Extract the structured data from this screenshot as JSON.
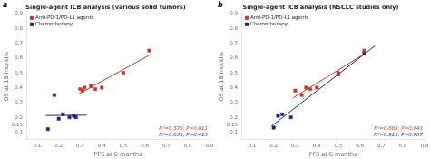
{
  "chart_data": [
    {
      "type": "scatter",
      "title": "Single-agent ICB analysis (various solid tumors)",
      "panel_label": "a",
      "xlabel": "PFS at 6 months",
      "ylabel": "OS at 18 months",
      "xlim": [
        0.05,
        0.9
      ],
      "ylim": [
        0.05,
        0.9
      ],
      "xticks": [
        0.1,
        0.2,
        0.3,
        0.4,
        0.5,
        0.6,
        0.7,
        0.8,
        0.9
      ],
      "yticks": [
        0.1,
        0.15,
        0.2,
        0.3,
        0.4,
        0.5,
        0.6,
        0.7,
        0.8,
        0.9
      ],
      "grid": false,
      "legend": "upper left",
      "series": [
        {
          "name": "Anti-PD-1/PD-L1 agents",
          "color": "#c0392b",
          "marker": "square",
          "x": [
            0.3,
            0.31,
            0.32,
            0.35,
            0.37,
            0.4,
            0.5,
            0.62
          ],
          "values": [
            0.39,
            0.38,
            0.4,
            0.41,
            0.39,
            0.4,
            0.5,
            0.65
          ],
          "fit_line": {
            "x": [
              0.29,
              0.63
            ],
            "values": [
              0.3552,
              0.6266
            ]
          }
        },
        {
          "name": "Chemotherapy",
          "color": "#1a237e",
          "marker": "square",
          "x": [
            0.18,
            0.2,
            0.22,
            0.25,
            0.27,
            0.28,
            0.15
          ],
          "values": [
            0.35,
            0.19,
            0.22,
            0.2,
            0.21,
            0.2,
            0.12
          ],
          "fit_line": {
            "x": [
              0.14,
              0.33
            ],
            "values": [
              0.2119,
              0.2142
            ]
          }
        }
      ],
      "annotations": [
        {
          "text": "R²=0.579; P=0.011",
          "color": "#c0392b"
        },
        {
          "text": "R²=0.035; P=0.413",
          "color": "#1a237e"
        }
      ]
    },
    {
      "type": "scatter",
      "title": "Single-agent ICB analysis (NSCLC studies only)",
      "panel_label": "b",
      "xlabel": "PFS at 6 months",
      "ylabel": "OS at 18 months",
      "xlim": [
        0.05,
        0.9
      ],
      "ylim": [
        0.05,
        0.9
      ],
      "xticks": [
        0.1,
        0.2,
        0.3,
        0.4,
        0.5,
        0.6,
        0.7,
        0.8,
        0.9
      ],
      "yticks": [
        0.1,
        0.15,
        0.2,
        0.3,
        0.4,
        0.5,
        0.6,
        0.7,
        0.8,
        0.9
      ],
      "grid": false,
      "legend": "upper left",
      "series": [
        {
          "name": "Anti-PD-1/PD-L1 agents",
          "color": "#c0392b",
          "marker": "square",
          "x": [
            0.3,
            0.33,
            0.35,
            0.37,
            0.4,
            0.5,
            0.62
          ],
          "values": [
            0.38,
            0.35,
            0.4,
            0.39,
            0.4,
            0.5,
            0.65
          ],
          "fit_line": {
            "x": [
              0.29,
              0.63
            ],
            "values": [
              0.331,
              0.6357
            ]
          }
        },
        {
          "name": "Chemotherapy",
          "color": "#1a237e",
          "marker": "square",
          "x": [
            0.22,
            0.24,
            0.28,
            0.5,
            0.62,
            0.2
          ],
          "values": [
            0.21,
            0.22,
            0.2,
            0.49,
            0.63,
            0.13
          ],
          "fit_line": {
            "x": [
              0.19,
              0.67
            ],
            "values": [
              0.1402,
              0.6823
            ]
          }
        }
      ],
      "annotations": [
        {
          "text": "R²=0.603; P=0.043",
          "color": "#c0392b"
        },
        {
          "text": "R²=0.919; P=0.007",
          "color": "#1a237e"
        }
      ]
    }
  ]
}
